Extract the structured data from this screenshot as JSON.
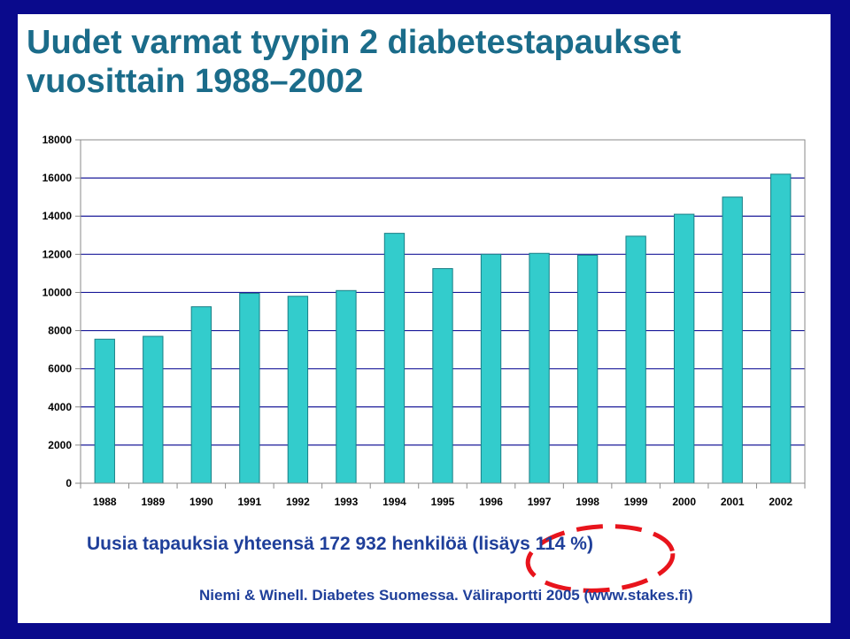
{
  "title_lines": [
    "Uudet varmat tyypin 2 diabetestapaukset",
    "vuosittain 1988–2002"
  ],
  "colors": {
    "frame": "#0a0a8c",
    "title": "#1b6c8a",
    "bar_fill": "#33cccc",
    "bar_stroke": "#1a7f86",
    "grid": "#1a1a99",
    "plot_border": "#8a8a8a",
    "caption": "#1f3f9a",
    "highlight": "#e8141c"
  },
  "chart_data": {
    "type": "bar",
    "title": "Uudet varmat tyypin 2 diabetestapaukset vuosittain 1988–2002",
    "xlabel": "",
    "ylabel": "",
    "categories": [
      "1988",
      "1989",
      "1990",
      "1991",
      "1992",
      "1993",
      "1994",
      "1995",
      "1996",
      "1997",
      "1998",
      "1999",
      "2000",
      "2001",
      "2002"
    ],
    "values": [
      7550,
      7700,
      9250,
      9950,
      9800,
      10100,
      13100,
      11250,
      12000,
      12050,
      11950,
      12950,
      14100,
      15000,
      16200
    ],
    "ylim": [
      0,
      18000
    ],
    "yticks": [
      0,
      2000,
      4000,
      6000,
      8000,
      10000,
      12000,
      14000,
      16000,
      18000
    ],
    "grid": true,
    "legend": "none"
  },
  "caption": {
    "text": "Uusia tapauksia yhteensä 172 932 henkilöä (lisäys 114 %)",
    "highlighted_part": "(lisäys 114 %)"
  },
  "source": "Niemi & Winell. Diabetes Suomessa. Väliraportti 2005 (www.stakes.fi)"
}
